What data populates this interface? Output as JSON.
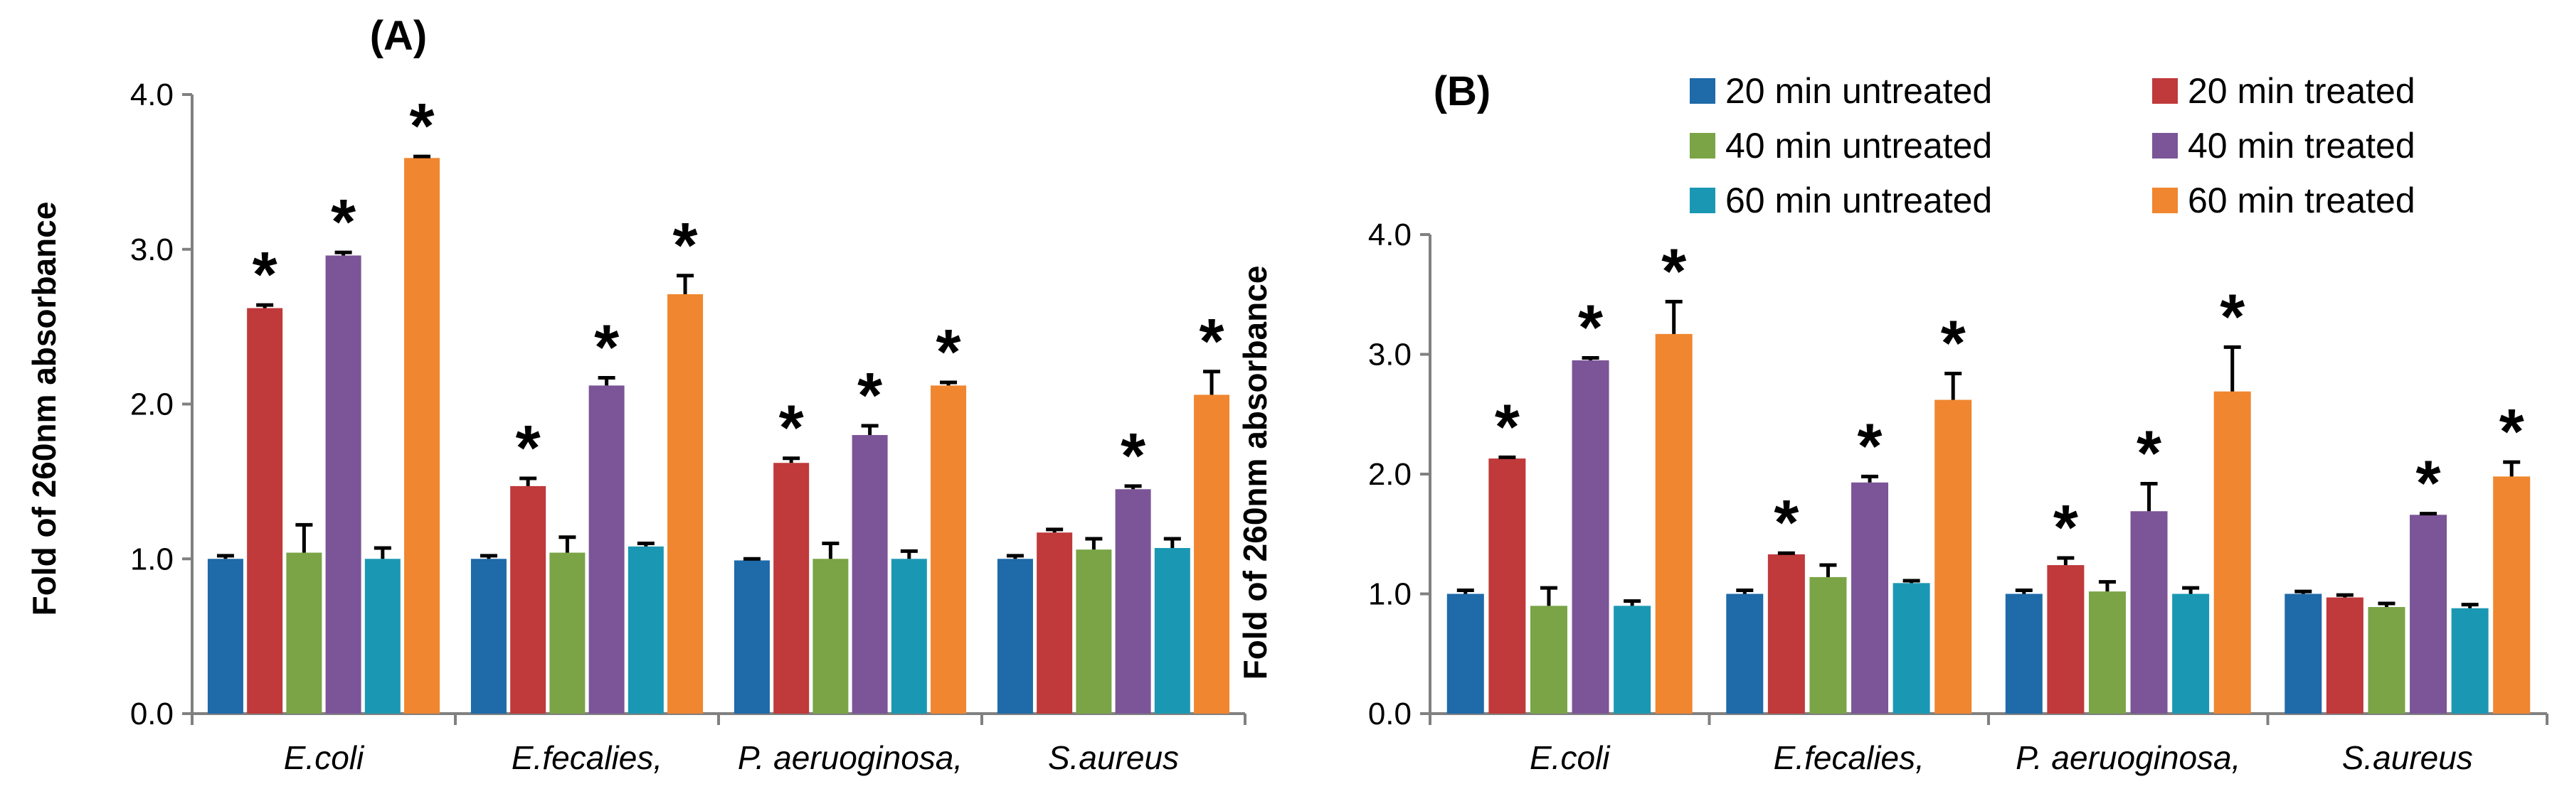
{
  "chart_data": [
    {
      "type": "bar",
      "panel_label": "(A)",
      "ylabel": "Fold of 260nm absorbance",
      "xlabel": "",
      "ylim": [
        0,
        4
      ],
      "yticks": [
        "0.0",
        "1.0",
        "2.0",
        "3.0",
        "4.0"
      ],
      "categories": [
        "E.coli",
        "E.fecalies,",
        "P. aeruoginosa,",
        "S.aureus"
      ],
      "series": [
        {
          "name": "20 min untreated",
          "values": [
            1.0,
            1.0,
            0.99,
            1.0
          ],
          "errors": [
            0.02,
            0.02,
            0.01,
            0.02
          ]
        },
        {
          "name": "20 min treated",
          "values": [
            2.62,
            1.47,
            1.62,
            1.17
          ],
          "errors": [
            0.02,
            0.05,
            0.03,
            0.02
          ]
        },
        {
          "name": "40 min untreated",
          "values": [
            1.04,
            1.04,
            1.0,
            1.06
          ],
          "errors": [
            0.18,
            0.1,
            0.1,
            0.07
          ]
        },
        {
          "name": "40 min treated",
          "values": [
            2.96,
            2.12,
            1.8,
            1.45
          ],
          "errors": [
            0.02,
            0.05,
            0.06,
            0.02
          ]
        },
        {
          "name": "60 min untreated",
          "values": [
            1.0,
            1.08,
            1.0,
            1.07
          ],
          "errors": [
            0.07,
            0.02,
            0.05,
            0.06
          ]
        },
        {
          "name": "60 min treated",
          "values": [
            3.59,
            2.71,
            2.12,
            2.06
          ],
          "errors": [
            0.01,
            0.12,
            0.02,
            0.15
          ]
        }
      ],
      "significance": [
        [
          false,
          true,
          false,
          true,
          false,
          true
        ],
        [
          false,
          true,
          false,
          true,
          false,
          true
        ],
        [
          false,
          true,
          false,
          true,
          false,
          true
        ],
        [
          false,
          false,
          false,
          true,
          false,
          true
        ]
      ],
      "significance_marker": "*"
    },
    {
      "type": "bar",
      "panel_label": "(B)",
      "ylabel": "Fold of 260nm absorbance",
      "xlabel": "",
      "ylim": [
        0,
        4
      ],
      "yticks": [
        "0.0",
        "1.0",
        "2.0",
        "3.0",
        "4.0"
      ],
      "categories": [
        "E.coli",
        "E.fecalies,",
        "P. aeruoginosa,",
        "S.aureus"
      ],
      "legend": {
        "position": "top-right",
        "columns": 2
      },
      "series": [
        {
          "name": "20 min untreated",
          "values": [
            1.0,
            1.0,
            1.0,
            1.0
          ],
          "errors": [
            0.03,
            0.03,
            0.03,
            0.02
          ]
        },
        {
          "name": "20 min treated",
          "values": [
            2.13,
            1.33,
            1.24,
            0.97
          ],
          "errors": [
            0.01,
            0.01,
            0.06,
            0.02
          ]
        },
        {
          "name": "40 min untreated",
          "values": [
            0.9,
            1.14,
            1.02,
            0.89
          ],
          "errors": [
            0.15,
            0.1,
            0.08,
            0.03
          ]
        },
        {
          "name": "40 min treated",
          "values": [
            2.95,
            1.93,
            1.69,
            1.66
          ],
          "errors": [
            0.02,
            0.05,
            0.23,
            0.01
          ]
        },
        {
          "name": "60 min untreated",
          "values": [
            0.9,
            1.09,
            1.0,
            0.88
          ],
          "errors": [
            0.04,
            0.02,
            0.05,
            0.03
          ]
        },
        {
          "name": "60 min treated",
          "values": [
            3.17,
            2.62,
            2.69,
            1.98
          ],
          "errors": [
            0.27,
            0.22,
            0.37,
            0.12
          ]
        }
      ],
      "significance": [
        [
          false,
          true,
          false,
          true,
          false,
          true
        ],
        [
          false,
          true,
          false,
          true,
          false,
          true
        ],
        [
          false,
          true,
          false,
          true,
          false,
          true
        ],
        [
          false,
          false,
          false,
          true,
          false,
          true
        ]
      ],
      "significance_marker": "*"
    }
  ],
  "colors": {
    "series": [
      "#1f6aa8",
      "#c0393b",
      "#7aa446",
      "#7b5597",
      "#1a98b3",
      "#f0862f"
    ],
    "axis": "#808080",
    "text": "#000000",
    "errorbar": "#000000"
  }
}
